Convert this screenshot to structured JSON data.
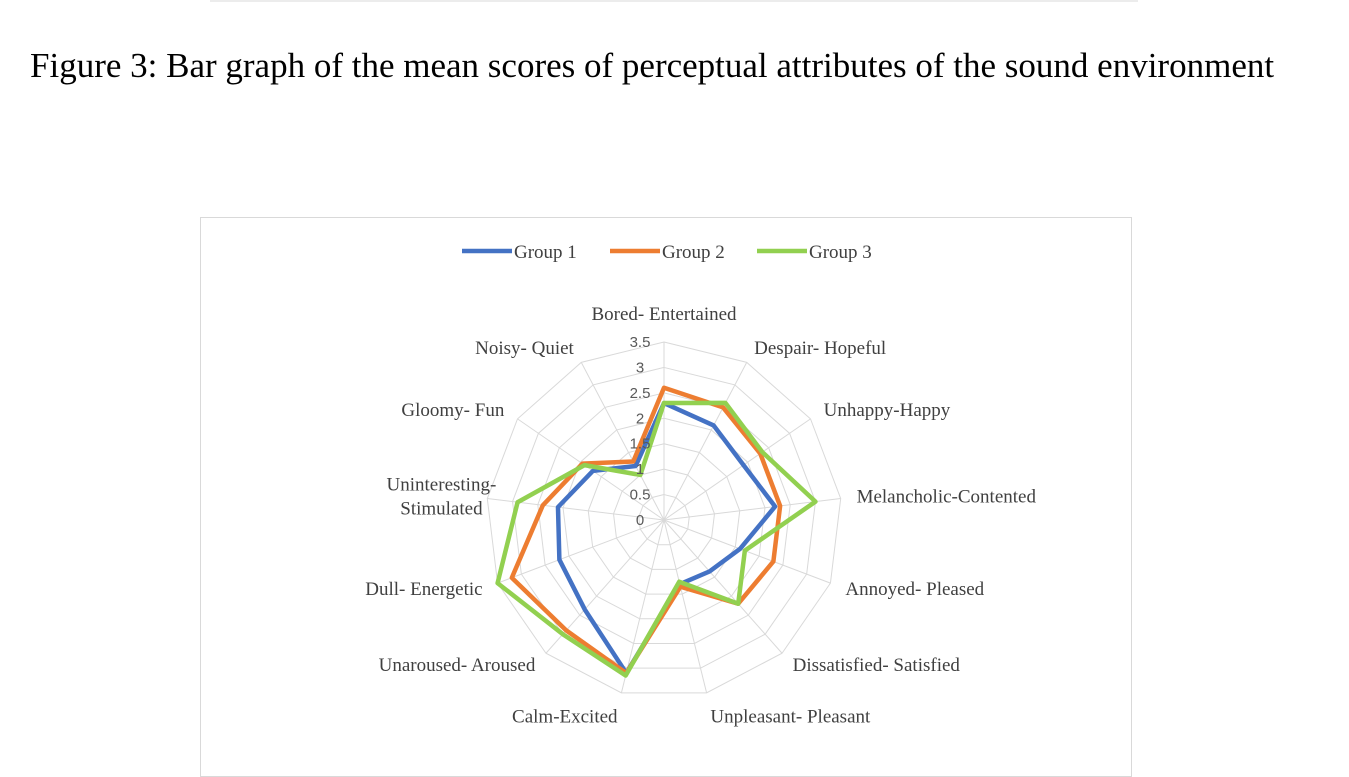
{
  "caption": "Figure 3: Bar graph of the mean scores of perceptual attributes of the sound environment",
  "chart_data": {
    "type": "radar",
    "axes": [
      "Bored- Entertained",
      "Despair- Hopeful",
      "Unhappy-Happy",
      "Melancholic-Contented",
      "Annoyed- Pleased",
      "Dissatisfied- Satisfied",
      "Unpleasant- Pleasant",
      "Calm-Excited",
      "Unaroused- Aroused",
      "Dull- Energetic",
      "Uninteresting-\nStimulated",
      "Gloomy- Fun",
      "Noisy- Quiet"
    ],
    "ticks": [
      "0",
      "0.5",
      "1",
      "1.5",
      "2",
      "2.5",
      "3",
      "3.5"
    ],
    "range": [
      0,
      3.5
    ],
    "legend_position": "top",
    "series": [
      {
        "name": "Group 1",
        "color": "#4472C4",
        "values": [
          2.3,
          2.1,
          1.9,
          2.2,
          1.6,
          1.35,
          1.3,
          3.1,
          2.35,
          2.2,
          2.1,
          1.7,
          1.2
        ]
      },
      {
        "name": "Group 2",
        "color": "#ED7D31",
        "values": [
          2.6,
          2.5,
          2.3,
          2.3,
          2.3,
          2.2,
          1.35,
          3.1,
          2.9,
          3.2,
          2.4,
          1.95,
          1.3
        ]
      },
      {
        "name": "Group 3",
        "color": "#92D050",
        "values": [
          2.3,
          2.6,
          2.35,
          3.0,
          1.7,
          2.2,
          1.25,
          3.15,
          3.0,
          3.5,
          2.9,
          1.9,
          1.0
        ]
      }
    ]
  }
}
